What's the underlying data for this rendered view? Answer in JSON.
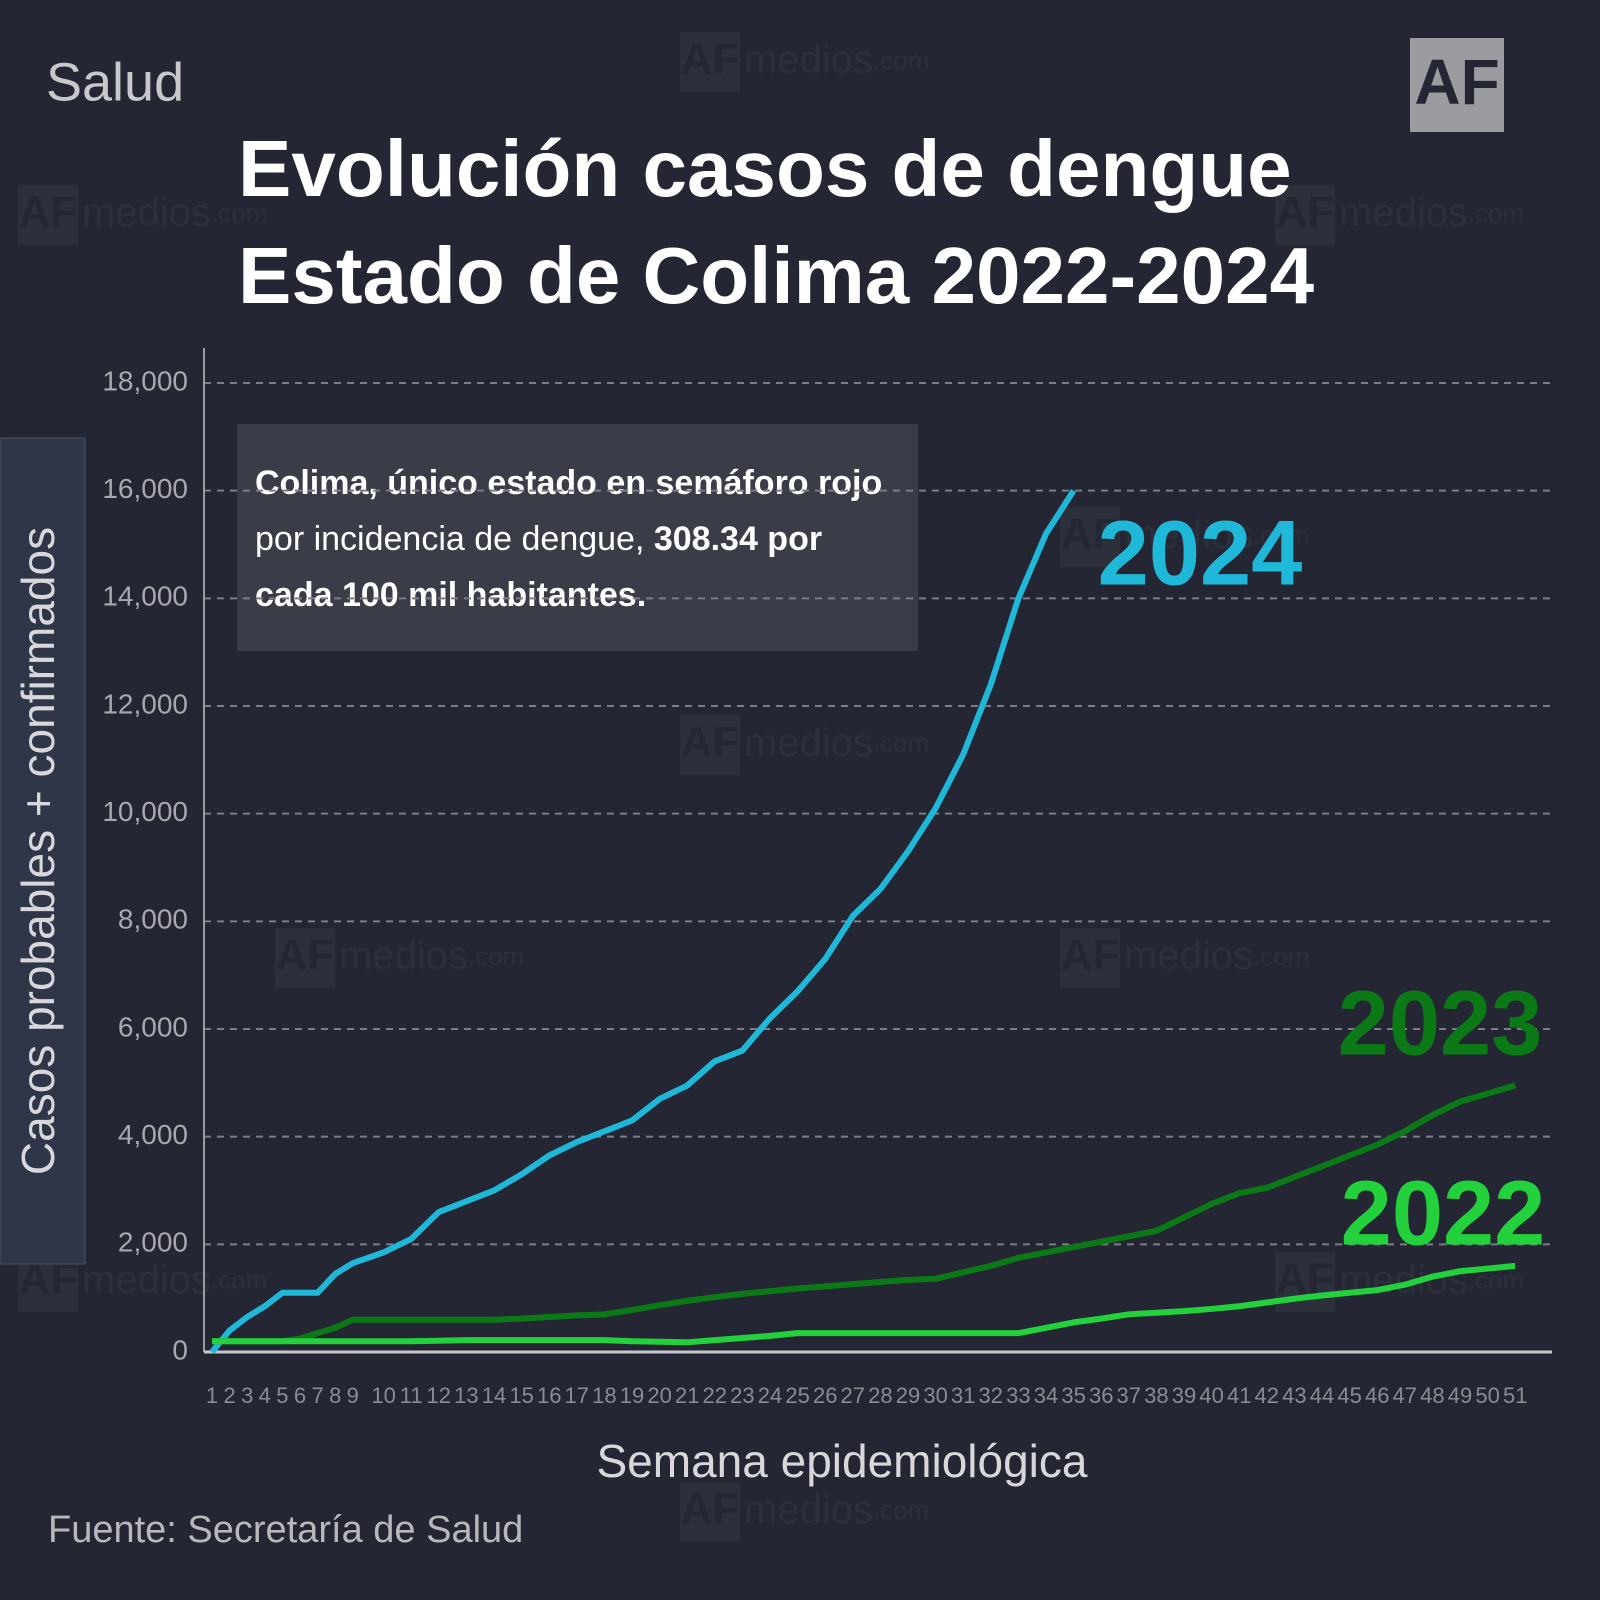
{
  "section": "Salud",
  "logo": "AF",
  "watermark": {
    "logo": "AF",
    "name": "medios",
    "suffix": ".com"
  },
  "source": "Fuente: Secretaría de Salud",
  "chart_data": {
    "type": "line",
    "title": [
      "Evolución casos de dengue",
      "Estado de Colima 2022-2024"
    ],
    "annotation": [
      [
        "Colima, único estado en semáforo rojo"
      ],
      [
        "por incidencia de dengue,",
        "308.34 por"
      ],
      [
        "cada 100 mil habitantes."
      ]
    ],
    "x_label": "Semana epidemiológica",
    "y_label": "Casos probables + confirmados",
    "categories": [
      "1",
      "2",
      "3",
      "4",
      "5",
      "6",
      "7",
      "8",
      "9",
      "10",
      "11",
      "12",
      "13",
      "14",
      "15",
      "16",
      "17",
      "18",
      "19",
      "20",
      "21",
      "22",
      "23",
      "24",
      "25",
      "26",
      "27",
      "28",
      "29",
      "30",
      "31",
      "32",
      "33",
      "34",
      "35",
      "36",
      "37",
      "38",
      "39",
      "40",
      "41",
      "42",
      "43",
      "44",
      "45",
      "46",
      "47",
      "48",
      "49",
      "50",
      "51"
    ],
    "ylim": [
      0,
      18000
    ],
    "yticks": [
      0,
      {
        "value": 2000,
        "label": "2,000"
      },
      {
        "value": 4000,
        "label": "4,000"
      },
      {
        "value": 6000,
        "label": "6,000"
      },
      {
        "value": 8000,
        "label": "8,000"
      },
      {
        "value": 10000,
        "label": "10,000"
      },
      {
        "value": 12000,
        "label": "12,000"
      },
      {
        "value": 14000,
        "label": "14,000"
      },
      {
        "value": 16000,
        "label": "16,000"
      },
      {
        "value": 18000,
        "label": "18,000"
      }
    ],
    "grid": true,
    "series": [
      {
        "name": "2024",
        "color": "#1fb8d8",
        "values": [
          0,
          400,
          650,
          850,
          1100,
          1100,
          1100,
          1450,
          1650,
          1850,
          2100,
          2600,
          2800,
          3000,
          3300,
          3650,
          3900,
          4100,
          4300,
          4700,
          4950,
          5400,
          5600,
          6200,
          6700,
          7300,
          8100,
          8600,
          9300,
          10100,
          11100,
          12400,
          14000,
          15200,
          16000,
          null,
          null,
          null,
          null,
          null,
          null,
          null,
          null,
          null,
          null,
          null,
          null,
          null,
          null,
          null,
          null
        ]
      },
      {
        "name": "2023",
        "color": "#0b7a16",
        "values": [
          200,
          200,
          200,
          200,
          200,
          250,
          350,
          450,
          600,
          600,
          600,
          600,
          600,
          600,
          620,
          650,
          680,
          700,
          780,
          870,
          950,
          1020,
          1080,
          1130,
          1180,
          1220,
          1260,
          1300,
          1340,
          1360,
          1480,
          1600,
          1750,
          1850,
          1950,
          2050,
          2150,
          2250,
          2500,
          2750,
          2950,
          3050,
          3250,
          3450,
          3650,
          3850,
          4100,
          4400,
          4650,
          4800,
          4950
        ]
      },
      {
        "name": "2022",
        "color": "#22d13c",
        "values": [
          200,
          200,
          200,
          200,
          200,
          200,
          200,
          200,
          200,
          200,
          200,
          210,
          220,
          220,
          220,
          220,
          220,
          220,
          200,
          190,
          180,
          220,
          260,
          300,
          350,
          350,
          350,
          350,
          350,
          350,
          350,
          350,
          350,
          450,
          550,
          620,
          700,
          730,
          760,
          800,
          850,
          920,
          990,
          1050,
          1100,
          1150,
          1250,
          1400,
          1500,
          1550,
          1600
        ]
      }
    ]
  }
}
